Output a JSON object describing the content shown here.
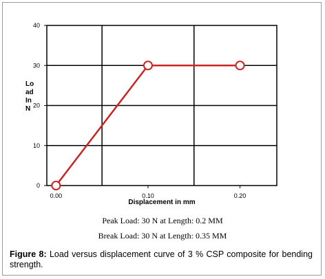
{
  "chart_data": {
    "type": "line",
    "title": "",
    "xlabel": "Displacement in mm",
    "ylabel": "Lo ad In N",
    "ylabel_lines": [
      "Lo",
      "ad",
      "In",
      "N"
    ],
    "x_tick_labels": [
      "0.00",
      "0.10",
      "0.20"
    ],
    "x_tick_values": [
      0.0,
      0.1,
      0.2
    ],
    "y_tick_labels": [
      "0",
      "10",
      "20",
      "30",
      "40"
    ],
    "y_tick_values": [
      0,
      10,
      20,
      30,
      40
    ],
    "xlim": [
      -0.01,
      0.24
    ],
    "ylim": [
      0,
      40
    ],
    "grid": true,
    "series": [
      {
        "x": [
          0.0,
          0.1,
          0.2
        ],
        "y": [
          0,
          30,
          30
        ],
        "color": "#cc2222",
        "marker": "open-circle"
      }
    ]
  },
  "annotations": {
    "peak_load": "Peak Load: 30 N at Length: 0.2 MM",
    "break_load": "Break Load: 30 N at Length: 0.35 MM"
  },
  "caption": {
    "label": "Figure 8:",
    "text": " Load versus displacement curve of 3 % CSP composite for bending strength."
  },
  "colors": {
    "line": "#cc2222",
    "marker_fill": "#ffffff",
    "grid": "#000000",
    "frame": "#9a9a9a"
  }
}
